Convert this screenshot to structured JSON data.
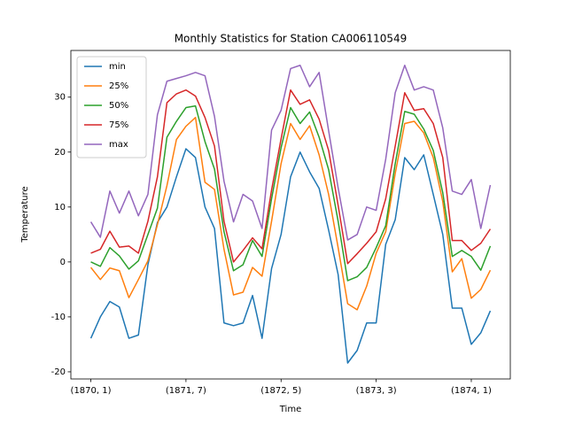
{
  "chart_data": {
    "type": "line",
    "title": "Monthly Statistics for Station CA006110549",
    "x_label": "Time",
    "y_label": "Temperature",
    "categories": [
      "(1870, 1)",
      null,
      null,
      null,
      null,
      null,
      null,
      null,
      null,
      null,
      "(1871, 7)",
      null,
      null,
      null,
      null,
      null,
      null,
      null,
      null,
      null,
      "(1872, 5)",
      null,
      null,
      null,
      null,
      null,
      null,
      null,
      null,
      null,
      "(1873, 3)",
      null,
      null,
      null,
      null,
      null,
      null,
      null,
      null,
      null,
      "(1874, 1)",
      null,
      null
    ],
    "xlim": [
      -2.1,
      44.1
    ],
    "ylim": [
      -21.3,
      38.5
    ],
    "yticks": [
      -20,
      -10,
      0,
      10,
      20,
      30
    ],
    "legend": "upper left",
    "series": [
      {
        "name": "min",
        "color": "#1f77b4",
        "values": [
          -13.9,
          -10,
          -7.2,
          -8.2,
          -13.9,
          -13.3,
          -0.5,
          7.2,
          10,
          15.5,
          20.6,
          19,
          10,
          6.1,
          -11.1,
          -11.6,
          -11.1,
          -6.1,
          -13.9,
          -1.2,
          5,
          15.5,
          20,
          16.4,
          13.4,
          5.8,
          -2.3,
          -18.4,
          -16.1,
          -11.1,
          -11.1,
          3.2,
          7.7,
          19,
          16.8,
          19.5,
          12.3,
          5,
          -8.4,
          -8.4,
          -15,
          -12.9,
          -8.9
        ]
      },
      {
        "name": "25%",
        "color": "#ff7f0e",
        "values": [
          -1,
          -3.2,
          -1.1,
          -1.6,
          -6.5,
          -3.2,
          0.2,
          6.8,
          13.9,
          22.3,
          24.7,
          26.3,
          14.5,
          13.2,
          2.3,
          -6,
          -5.5,
          -1,
          -2.6,
          7.4,
          17.9,
          25.2,
          22.3,
          24.8,
          19.5,
          12.3,
          2.6,
          -7.6,
          -8.7,
          -4.4,
          1.6,
          5.5,
          16.1,
          25.2,
          25.6,
          23.5,
          19,
          11,
          -1.8,
          0.6,
          -6.6,
          -5,
          -1.5
        ]
      },
      {
        "name": "50%",
        "color": "#2ca02c",
        "values": [
          0,
          -0.8,
          2.6,
          1.1,
          -1.3,
          0.2,
          5,
          9.8,
          22.7,
          25.6,
          28.1,
          28.4,
          21.9,
          16.9,
          5.5,
          -1.6,
          -0.5,
          3.9,
          1,
          11.5,
          20.8,
          28.1,
          25.2,
          27.3,
          22.7,
          16.8,
          7.4,
          -3.4,
          -2.7,
          -1,
          2.6,
          6.6,
          17.9,
          27.4,
          26.9,
          24.2,
          20.3,
          12.6,
          1,
          2.1,
          1,
          -1.5,
          2.9
        ]
      },
      {
        "name": "75%",
        "color": "#d62728",
        "values": [
          1.6,
          2.3,
          5.6,
          2.7,
          2.9,
          1.6,
          7.4,
          15.5,
          29,
          30.6,
          31.3,
          30.2,
          26.3,
          21.1,
          7.4,
          0,
          2.1,
          4.4,
          2.4,
          13.1,
          22.4,
          31.3,
          28.7,
          29.5,
          26,
          20.3,
          10.3,
          -0.3,
          1.5,
          3.4,
          5.5,
          11.5,
          21.1,
          30.8,
          27.6,
          27.9,
          25.2,
          19,
          3.9,
          3.9,
          2.1,
          3.4,
          6
        ]
      },
      {
        "name": "max",
        "color": "#9467bd",
        "values": [
          7.3,
          4.5,
          12.9,
          8.9,
          12.9,
          8.4,
          12.3,
          26.8,
          32.9,
          33.4,
          33.9,
          34.5,
          33.9,
          26.5,
          14.7,
          7.3,
          12.3,
          11.1,
          6.1,
          24,
          27.6,
          35.2,
          35.8,
          31.9,
          34.5,
          23.9,
          13.5,
          4,
          5,
          10,
          9.4,
          18.7,
          30.8,
          35.8,
          31.3,
          31.9,
          31.3,
          24.4,
          12.9,
          12.3,
          15,
          6.1,
          14
        ]
      }
    ]
  }
}
